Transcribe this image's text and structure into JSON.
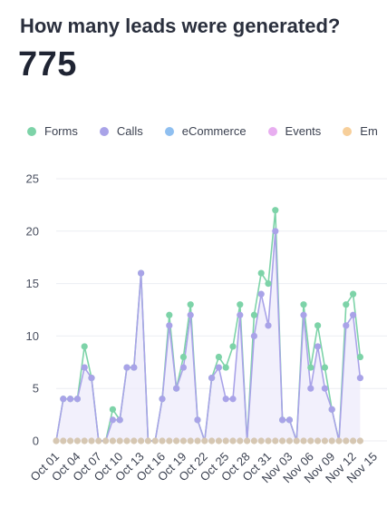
{
  "header": {
    "question": "How many leads were generated?",
    "total": "775"
  },
  "legend": [
    {
      "label": "Forms",
      "color": "#7dd3a8"
    },
    {
      "label": "Calls",
      "color": "#a9a3e8"
    },
    {
      "label": "eCommerce",
      "color": "#8fbff0"
    },
    {
      "label": "Events",
      "color": "#e8aef0"
    },
    {
      "label": "Em",
      "color": "#f7cf9a"
    }
  ],
  "chart_data": {
    "type": "line",
    "ylim": [
      0,
      25
    ],
    "yticks": [
      "0",
      "5",
      "10",
      "15",
      "20",
      "25"
    ],
    "grid": true,
    "legend_position": "top",
    "x_tick_labels": [
      "Oct 01",
      "Oct 04",
      "Oct 07",
      "Oct 10",
      "Oct 13",
      "Oct 16",
      "Oct 19",
      "Oct 22",
      "Oct 25",
      "Oct 28",
      "Oct 31",
      "Nov 03",
      "Nov 06",
      "Nov 09",
      "Nov 12",
      "Nov 15"
    ],
    "x_tick_every": 3,
    "series": [
      {
        "name": "Forms",
        "color": "#7dd3a8",
        "values": [
          0,
          4,
          4,
          4,
          9,
          6,
          0,
          0,
          3,
          2,
          7,
          7,
          16,
          0,
          0,
          4,
          12,
          5,
          8,
          13,
          2,
          0,
          6,
          8,
          7,
          9,
          13,
          0,
          12,
          16,
          15,
          22,
          2,
          2,
          0,
          13,
          7,
          11,
          7,
          3,
          0,
          13,
          14,
          8
        ]
      },
      {
        "name": "Calls",
        "color": "#a9a3e8",
        "values": [
          0,
          4,
          4,
          4,
          7,
          6,
          0,
          0,
          2,
          2,
          7,
          7,
          16,
          0,
          0,
          4,
          11,
          5,
          7,
          12,
          2,
          0,
          6,
          7,
          4,
          4,
          12,
          0,
          10,
          14,
          11,
          20,
          2,
          2,
          0,
          12,
          5,
          9,
          5,
          3,
          0,
          11,
          12,
          6
        ]
      },
      {
        "name": "eCommerce",
        "color": "#8fbff0",
        "values": []
      },
      {
        "name": "Events",
        "color": "#e8aef0",
        "values": []
      },
      {
        "name": "Em",
        "color": "#f7cf9a",
        "values": []
      }
    ]
  }
}
